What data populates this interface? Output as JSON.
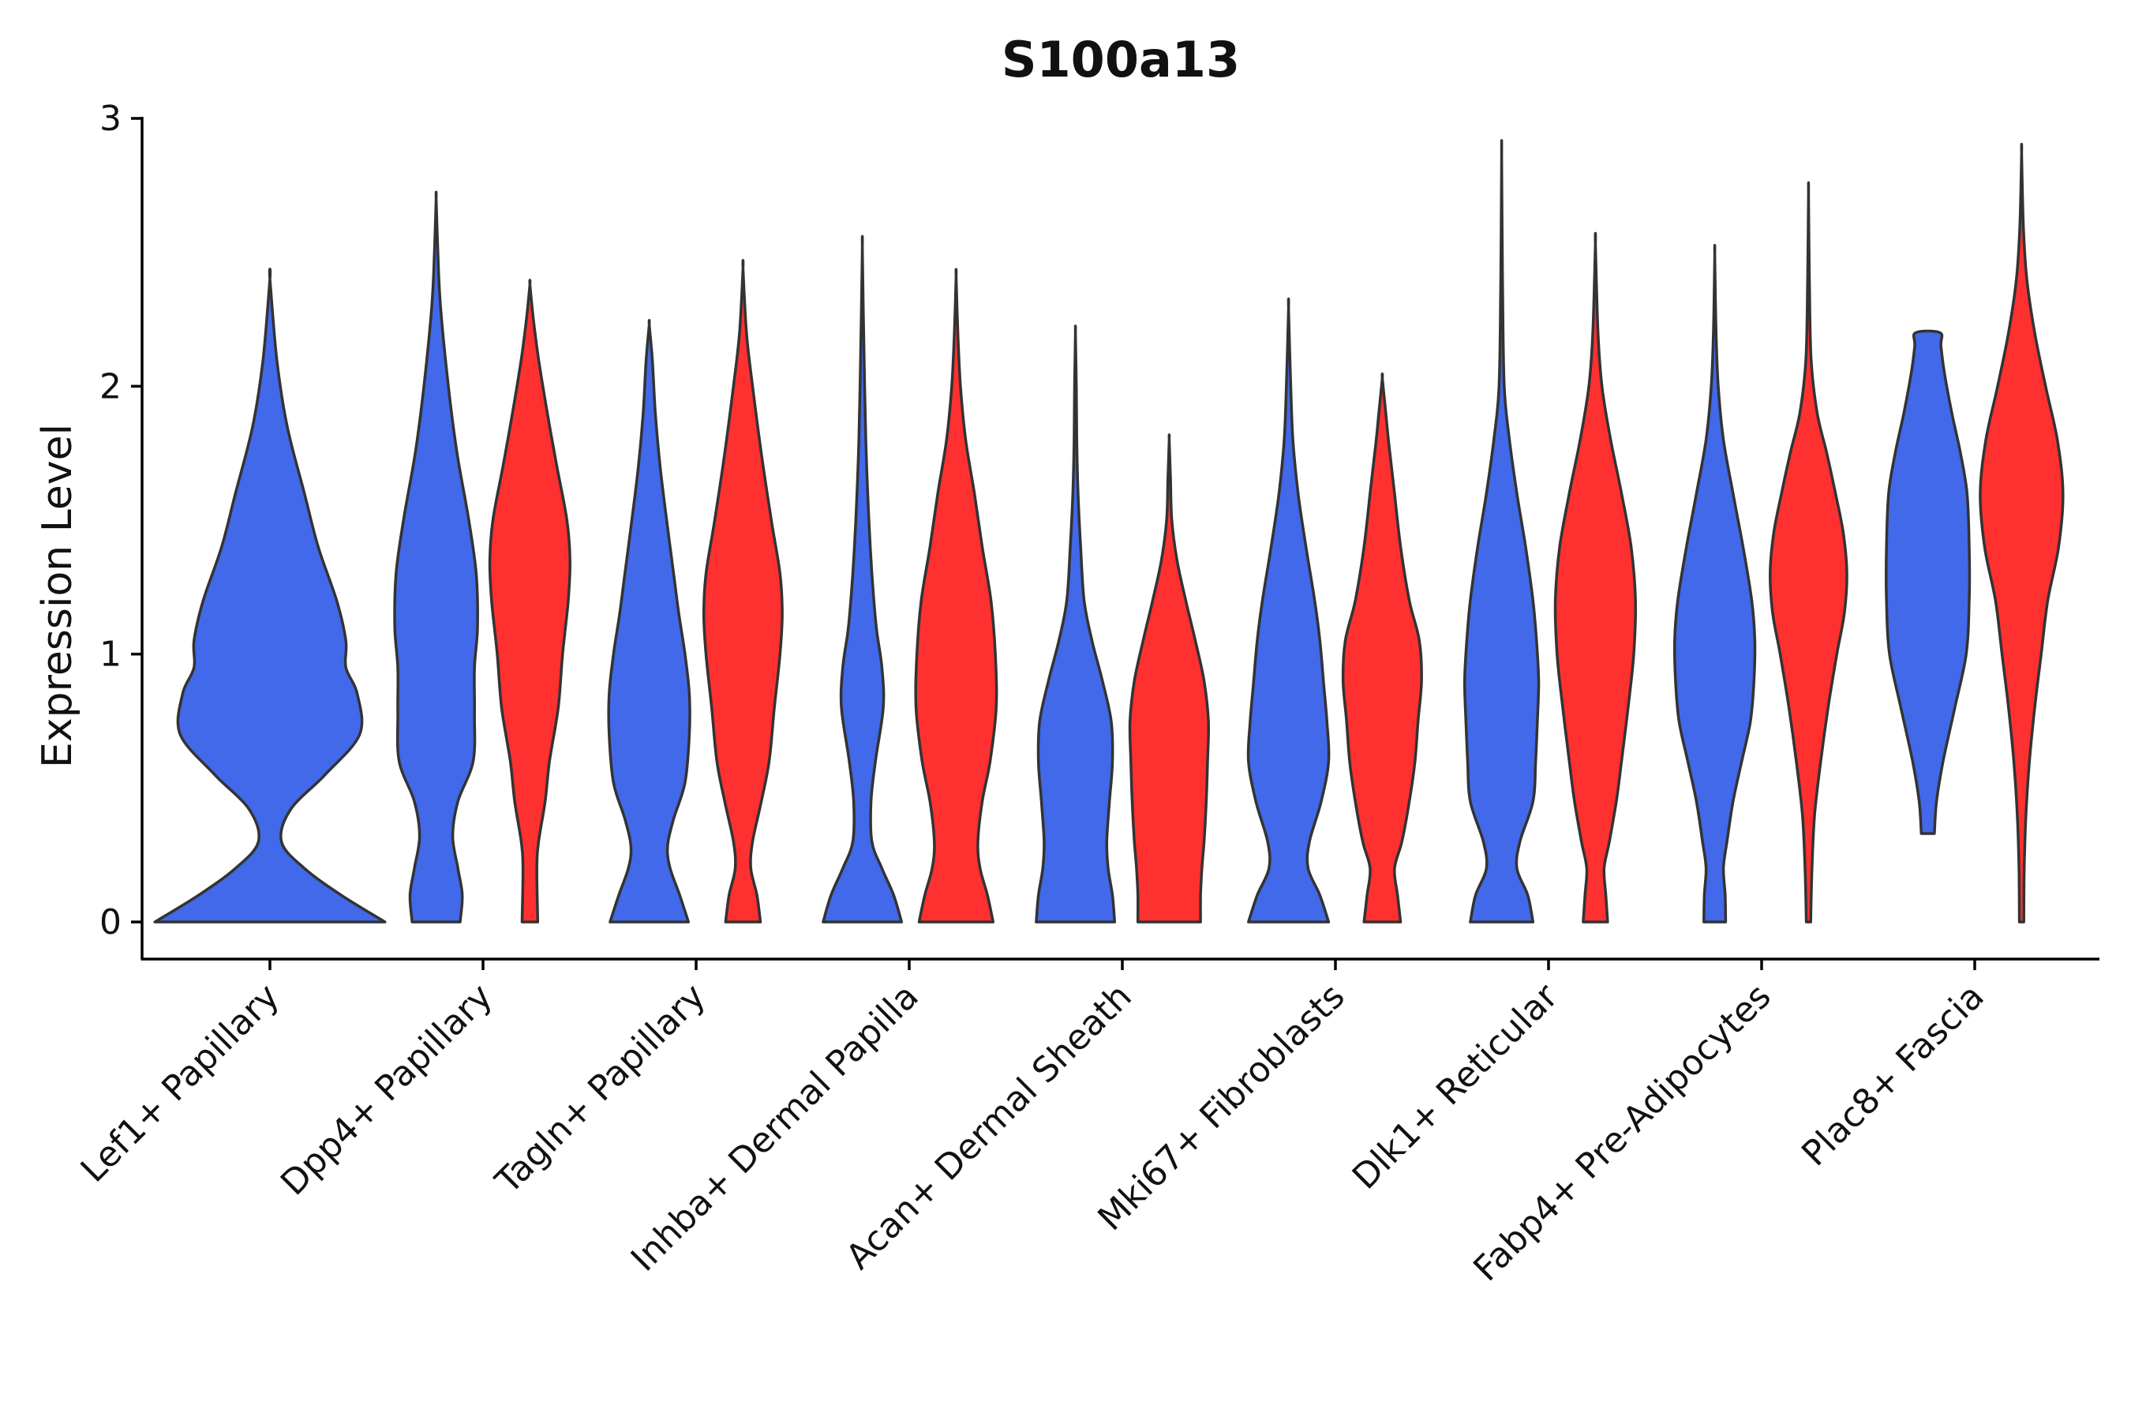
{
  "chart_data": {
    "type": "violin",
    "title": "S100a13",
    "xlabel": "",
    "ylabel": "Expression Level",
    "ylim": [
      -0.15,
      3.0
    ],
    "yticks": [
      0,
      1,
      2,
      3
    ],
    "y_tick_labels": [
      "0",
      "1",
      "2",
      "3"
    ],
    "series_colors": {
      "blue": "#4169E9",
      "red": "#FF3030"
    },
    "categories": [
      "Lef1+ Papillary",
      "Dpp4+ Papillary",
      "Tagln+ Papillary",
      "Inhba+ Dermal Papilla",
      "Acan+ Dermal Sheath",
      "Mki67+ Fibroblasts",
      "Dlk1+ Reticular",
      "Fabp4+ Pre-Adipocytes",
      "Plac8+ Fascia"
    ],
    "violins": [
      {
        "category": "Lef1+ Papillary",
        "group": "blue",
        "offset": 0,
        "scale": 0.9,
        "profile": [
          [
            0,
            1.0
          ],
          [
            0.1,
            0.62
          ],
          [
            0.2,
            0.3
          ],
          [
            0.3,
            0.1
          ],
          [
            0.42,
            0.18
          ],
          [
            0.55,
            0.48
          ],
          [
            0.7,
            0.78
          ],
          [
            0.85,
            0.76
          ],
          [
            0.95,
            0.66
          ],
          [
            1.05,
            0.66
          ],
          [
            1.2,
            0.58
          ],
          [
            1.4,
            0.42
          ],
          [
            1.6,
            0.3
          ],
          [
            1.85,
            0.15
          ],
          [
            2.1,
            0.06
          ],
          [
            2.4,
            0.0
          ]
        ]
      },
      {
        "category": "Dpp4+ Papillary",
        "group": "blue",
        "offset": -0.22,
        "scale": 0.46,
        "profile": [
          [
            0,
            0.55
          ],
          [
            0.1,
            0.6
          ],
          [
            0.2,
            0.5
          ],
          [
            0.32,
            0.38
          ],
          [
            0.45,
            0.5
          ],
          [
            0.6,
            0.85
          ],
          [
            0.78,
            0.88
          ],
          [
            0.95,
            0.88
          ],
          [
            1.1,
            0.95
          ],
          [
            1.3,
            0.92
          ],
          [
            1.5,
            0.75
          ],
          [
            1.75,
            0.48
          ],
          [
            2.0,
            0.28
          ],
          [
            2.3,
            0.1
          ],
          [
            2.5,
            0.04
          ],
          [
            2.7,
            0.0
          ]
        ]
      },
      {
        "category": "Dpp4+ Papillary",
        "group": "red",
        "offset": 0.22,
        "scale": 0.46,
        "profile": [
          [
            0,
            0.18
          ],
          [
            0.2,
            0.16
          ],
          [
            0.3,
            0.2
          ],
          [
            0.45,
            0.35
          ],
          [
            0.6,
            0.45
          ],
          [
            0.8,
            0.65
          ],
          [
            1.0,
            0.75
          ],
          [
            1.2,
            0.88
          ],
          [
            1.35,
            0.92
          ],
          [
            1.5,
            0.85
          ],
          [
            1.7,
            0.62
          ],
          [
            1.9,
            0.4
          ],
          [
            2.1,
            0.2
          ],
          [
            2.25,
            0.08
          ],
          [
            2.38,
            0.0
          ]
        ]
      },
      {
        "category": "Tagln+ Papillary",
        "group": "blue",
        "offset": -0.22,
        "scale": 0.46,
        "profile": [
          [
            0,
            0.9
          ],
          [
            0.1,
            0.7
          ],
          [
            0.2,
            0.48
          ],
          [
            0.28,
            0.42
          ],
          [
            0.38,
            0.55
          ],
          [
            0.52,
            0.82
          ],
          [
            0.7,
            0.92
          ],
          [
            0.85,
            0.92
          ],
          [
            1.0,
            0.82
          ],
          [
            1.15,
            0.68
          ],
          [
            1.3,
            0.56
          ],
          [
            1.5,
            0.4
          ],
          [
            1.7,
            0.25
          ],
          [
            1.9,
            0.14
          ],
          [
            2.1,
            0.07
          ],
          [
            2.23,
            0.0
          ]
        ]
      },
      {
        "category": "Tagln+ Papillary",
        "group": "red",
        "offset": 0.22,
        "scale": 0.46,
        "profile": [
          [
            0,
            0.4
          ],
          [
            0.1,
            0.32
          ],
          [
            0.2,
            0.18
          ],
          [
            0.3,
            0.22
          ],
          [
            0.45,
            0.42
          ],
          [
            0.6,
            0.6
          ],
          [
            0.8,
            0.72
          ],
          [
            1.0,
            0.85
          ],
          [
            1.15,
            0.9
          ],
          [
            1.3,
            0.85
          ],
          [
            1.5,
            0.65
          ],
          [
            1.75,
            0.42
          ],
          [
            2.0,
            0.22
          ],
          [
            2.2,
            0.08
          ],
          [
            2.44,
            0.0
          ]
        ]
      },
      {
        "category": "Inhba+ Dermal Papilla",
        "group": "blue",
        "offset": -0.22,
        "scale": 0.46,
        "profile": [
          [
            0,
            0.9
          ],
          [
            0.1,
            0.72
          ],
          [
            0.2,
            0.45
          ],
          [
            0.3,
            0.22
          ],
          [
            0.45,
            0.2
          ],
          [
            0.6,
            0.3
          ],
          [
            0.8,
            0.48
          ],
          [
            0.95,
            0.45
          ],
          [
            1.1,
            0.32
          ],
          [
            1.3,
            0.22
          ],
          [
            1.5,
            0.15
          ],
          [
            1.8,
            0.08
          ],
          [
            2.2,
            0.03
          ],
          [
            2.52,
            0.0
          ]
        ]
      },
      {
        "category": "Inhba+ Dermal Papilla",
        "group": "red",
        "offset": 0.22,
        "scale": 0.46,
        "profile": [
          [
            0,
            0.85
          ],
          [
            0.1,
            0.72
          ],
          [
            0.2,
            0.55
          ],
          [
            0.3,
            0.5
          ],
          [
            0.45,
            0.6
          ],
          [
            0.6,
            0.78
          ],
          [
            0.8,
            0.92
          ],
          [
            1.0,
            0.9
          ],
          [
            1.2,
            0.8
          ],
          [
            1.4,
            0.6
          ],
          [
            1.6,
            0.42
          ],
          [
            1.8,
            0.22
          ],
          [
            2.0,
            0.1
          ],
          [
            2.2,
            0.04
          ],
          [
            2.41,
            0.0
          ]
        ]
      },
      {
        "category": "Acan+ Dermal Sheath",
        "group": "blue",
        "offset": -0.22,
        "scale": 0.46,
        "profile": [
          [
            0,
            0.9
          ],
          [
            0.1,
            0.85
          ],
          [
            0.2,
            0.75
          ],
          [
            0.3,
            0.72
          ],
          [
            0.45,
            0.78
          ],
          [
            0.6,
            0.85
          ],
          [
            0.75,
            0.82
          ],
          [
            0.9,
            0.62
          ],
          [
            1.05,
            0.38
          ],
          [
            1.2,
            0.2
          ],
          [
            1.4,
            0.12
          ],
          [
            1.6,
            0.06
          ],
          [
            1.8,
            0.03
          ],
          [
            2.0,
            0.02
          ],
          [
            2.2,
            0.0
          ]
        ]
      },
      {
        "category": "Acan+ Dermal Sheath",
        "group": "red",
        "offset": 0.22,
        "scale": 0.46,
        "profile": [
          [
            0,
            0.72
          ],
          [
            0.1,
            0.72
          ],
          [
            0.2,
            0.75
          ],
          [
            0.3,
            0.8
          ],
          [
            0.45,
            0.85
          ],
          [
            0.6,
            0.88
          ],
          [
            0.75,
            0.9
          ],
          [
            0.9,
            0.8
          ],
          [
            1.05,
            0.6
          ],
          [
            1.2,
            0.38
          ],
          [
            1.35,
            0.18
          ],
          [
            1.5,
            0.06
          ],
          [
            1.65,
            0.03
          ],
          [
            1.8,
            0.0
          ]
        ]
      },
      {
        "category": "Mki67+ Fibroblasts",
        "group": "blue",
        "offset": -0.22,
        "scale": 0.46,
        "profile": [
          [
            0,
            0.92
          ],
          [
            0.1,
            0.72
          ],
          [
            0.2,
            0.45
          ],
          [
            0.3,
            0.48
          ],
          [
            0.45,
            0.75
          ],
          [
            0.6,
            0.92
          ],
          [
            0.75,
            0.88
          ],
          [
            0.9,
            0.8
          ],
          [
            1.05,
            0.72
          ],
          [
            1.2,
            0.6
          ],
          [
            1.4,
            0.4
          ],
          [
            1.6,
            0.22
          ],
          [
            1.8,
            0.1
          ],
          [
            2.0,
            0.05
          ],
          [
            2.29,
            0.0
          ]
        ]
      },
      {
        "category": "Mki67+ Fibroblasts",
        "group": "red",
        "offset": 0.22,
        "scale": 0.46,
        "profile": [
          [
            0,
            0.42
          ],
          [
            0.1,
            0.35
          ],
          [
            0.2,
            0.28
          ],
          [
            0.3,
            0.45
          ],
          [
            0.45,
            0.62
          ],
          [
            0.6,
            0.75
          ],
          [
            0.75,
            0.82
          ],
          [
            0.9,
            0.9
          ],
          [
            1.05,
            0.85
          ],
          [
            1.2,
            0.62
          ],
          [
            1.4,
            0.42
          ],
          [
            1.6,
            0.28
          ],
          [
            1.8,
            0.14
          ],
          [
            1.9,
            0.08
          ],
          [
            2.03,
            0.0
          ]
        ]
      },
      {
        "category": "Dlk1+ Reticular",
        "group": "blue",
        "offset": -0.22,
        "scale": 0.46,
        "profile": [
          [
            0,
            0.72
          ],
          [
            0.1,
            0.6
          ],
          [
            0.2,
            0.35
          ],
          [
            0.3,
            0.42
          ],
          [
            0.45,
            0.72
          ],
          [
            0.6,
            0.78
          ],
          [
            0.75,
            0.82
          ],
          [
            0.9,
            0.85
          ],
          [
            1.05,
            0.8
          ],
          [
            1.2,
            0.72
          ],
          [
            1.4,
            0.55
          ],
          [
            1.6,
            0.35
          ],
          [
            1.8,
            0.18
          ],
          [
            2.0,
            0.06
          ],
          [
            2.4,
            0.02
          ],
          [
            2.86,
            0.0
          ]
        ]
      },
      {
        "category": "Dlk1+ Reticular",
        "group": "red",
        "offset": 0.22,
        "scale": 0.46,
        "profile": [
          [
            0,
            0.28
          ],
          [
            0.1,
            0.24
          ],
          [
            0.2,
            0.2
          ],
          [
            0.3,
            0.32
          ],
          [
            0.45,
            0.48
          ],
          [
            0.6,
            0.6
          ],
          [
            0.8,
            0.75
          ],
          [
            1.0,
            0.88
          ],
          [
            1.2,
            0.92
          ],
          [
            1.4,
            0.82
          ],
          [
            1.6,
            0.6
          ],
          [
            1.8,
            0.35
          ],
          [
            2.0,
            0.15
          ],
          [
            2.2,
            0.06
          ],
          [
            2.53,
            0.0
          ]
        ]
      },
      {
        "category": "Fabp4+ Pre-Adipocytes",
        "group": "blue",
        "offset": -0.22,
        "scale": 0.46,
        "profile": [
          [
            0,
            0.25
          ],
          [
            0.1,
            0.24
          ],
          [
            0.2,
            0.2
          ],
          [
            0.3,
            0.28
          ],
          [
            0.45,
            0.42
          ],
          [
            0.6,
            0.62
          ],
          [
            0.75,
            0.82
          ],
          [
            0.9,
            0.9
          ],
          [
            1.05,
            0.92
          ],
          [
            1.2,
            0.85
          ],
          [
            1.4,
            0.65
          ],
          [
            1.6,
            0.42
          ],
          [
            1.8,
            0.2
          ],
          [
            2.0,
            0.08
          ],
          [
            2.2,
            0.03
          ],
          [
            2.49,
            0.0
          ]
        ]
      },
      {
        "category": "Fabp4+ Pre-Adipocytes",
        "group": "red",
        "offset": 0.22,
        "scale": 0.46,
        "profile": [
          [
            0,
            0.05
          ],
          [
            0.2,
            0.08
          ],
          [
            0.4,
            0.14
          ],
          [
            0.6,
            0.28
          ],
          [
            0.8,
            0.45
          ],
          [
            1.0,
            0.65
          ],
          [
            1.15,
            0.82
          ],
          [
            1.3,
            0.88
          ],
          [
            1.45,
            0.8
          ],
          [
            1.6,
            0.62
          ],
          [
            1.75,
            0.42
          ],
          [
            1.9,
            0.2
          ],
          [
            2.1,
            0.06
          ],
          [
            2.4,
            0.02
          ],
          [
            2.72,
            0.0
          ]
        ]
      },
      {
        "category": "Plac8+ Fascia",
        "group": "blue",
        "offset": -0.22,
        "scale": 0.46,
        "profile": [
          [
            0.33,
            0.15
          ],
          [
            0.45,
            0.2
          ],
          [
            0.6,
            0.35
          ],
          [
            0.8,
            0.62
          ],
          [
            1.0,
            0.88
          ],
          [
            1.2,
            0.95
          ],
          [
            1.4,
            0.95
          ],
          [
            1.6,
            0.9
          ],
          [
            1.75,
            0.75
          ],
          [
            1.9,
            0.55
          ],
          [
            2.05,
            0.38
          ],
          [
            2.15,
            0.3
          ],
          [
            2.2,
            0.28
          ]
        ]
      },
      {
        "category": "Plac8+ Fascia",
        "group": "red",
        "offset": 0.22,
        "scale": 0.46,
        "profile": [
          [
            0,
            0.05
          ],
          [
            0.2,
            0.06
          ],
          [
            0.4,
            0.1
          ],
          [
            0.6,
            0.18
          ],
          [
            0.8,
            0.3
          ],
          [
            1.0,
            0.45
          ],
          [
            1.2,
            0.6
          ],
          [
            1.4,
            0.85
          ],
          [
            1.6,
            0.95
          ],
          [
            1.8,
            0.82
          ],
          [
            2.0,
            0.55
          ],
          [
            2.2,
            0.3
          ],
          [
            2.4,
            0.12
          ],
          [
            2.6,
            0.04
          ],
          [
            2.87,
            0.0
          ]
        ]
      }
    ]
  }
}
